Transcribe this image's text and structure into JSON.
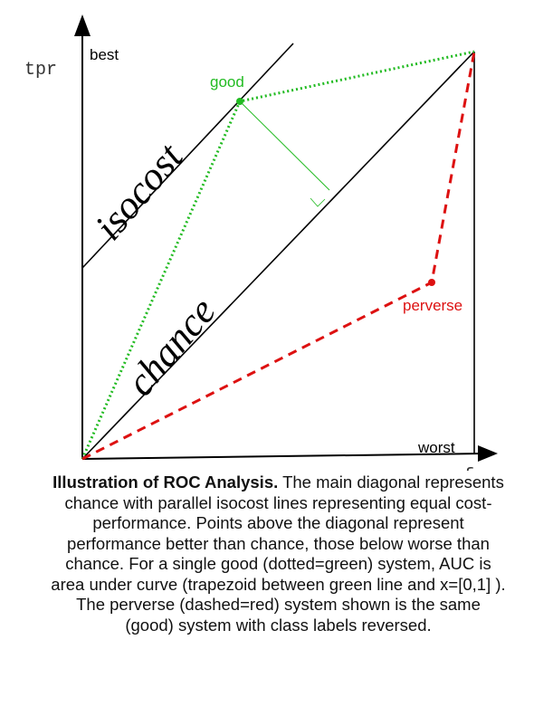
{
  "axes": {
    "y_label": "tpr",
    "x_label": "fpr",
    "top_label": "best",
    "bottom_right_label": "worst"
  },
  "lines": {
    "isocost_label": "isocost",
    "chance_label": "chance"
  },
  "points": {
    "good_label": "good",
    "perverse_label": "perverse"
  },
  "colors": {
    "good": "#22bb22",
    "perverse": "#dd1111",
    "axis": "#000000"
  },
  "caption": {
    "title": "Illustration of ROC Analysis.",
    "body": " The main diagonal represents chance with parallel isocost lines representing equal cost-performance. Points above the diagonal represent performance better than chance, those below worse than chance. For a single good (dotted=green) system, AUC is area under curve (trapezoid between green line and x=[0,1] ). The perverse (dashed=red) system shown is the same (good) system with class labels reversed."
  }
}
